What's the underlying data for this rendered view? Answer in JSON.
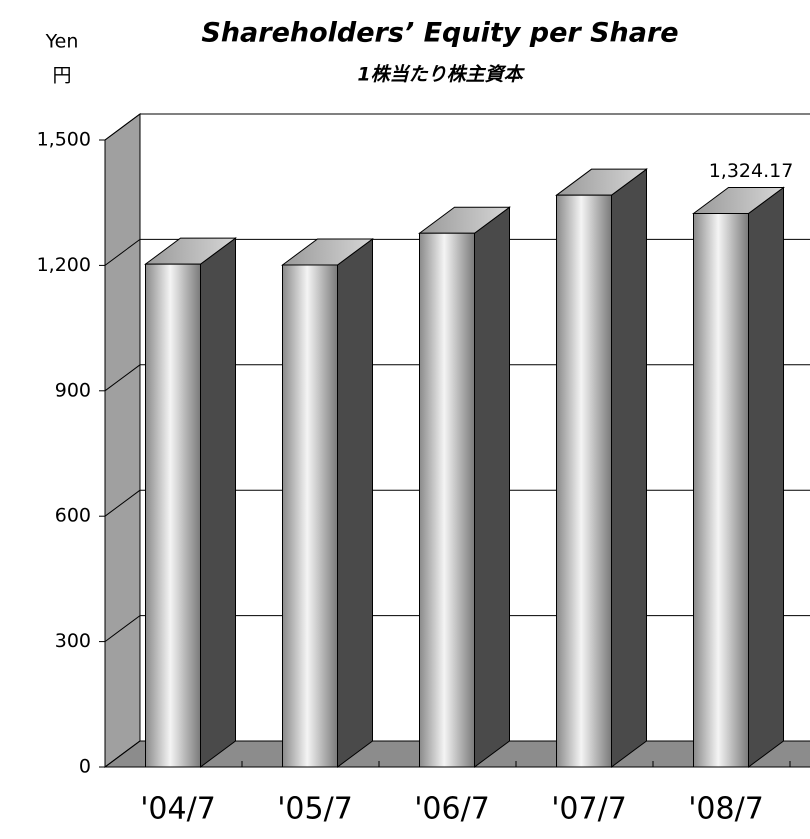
{
  "chart_data": {
    "type": "bar3d",
    "title": "Shareholders’ Equity per Share",
    "subtitle": "1株当たり株主資本",
    "y_label": "Yen",
    "y_label_ja": "円",
    "categories": [
      "'04/7",
      "'05/7",
      "'06/7",
      "'07/7",
      "'08/7"
    ],
    "values": [
      1203,
      1201,
      1277,
      1368,
      1324.17
    ],
    "value_labels": [
      null,
      null,
      null,
      null,
      "1,324.17"
    ],
    "ylim": [
      0,
      1500
    ],
    "yticks": [
      0,
      300,
      600,
      900,
      {
        "value": 1200,
        "label": "1,200"
      },
      {
        "value": 1500,
        "label": "1,500"
      }
    ],
    "grid": true,
    "color": "#c8c8c8"
  }
}
